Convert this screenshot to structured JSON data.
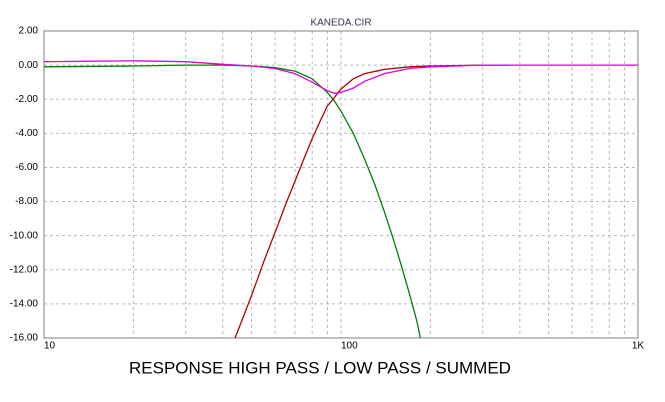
{
  "chart_data": {
    "type": "line",
    "title": "KANEDA.CIR",
    "caption": "RESPONSE  HIGH PASS / LOW PASS / SUMMED",
    "x_scale": "log",
    "xlim": [
      10,
      1000
    ],
    "xticks": [
      10,
      100,
      {
        "value": 1000,
        "label": "1K"
      }
    ],
    "xminorticks": [
      20,
      30,
      40,
      50,
      60,
      70,
      80,
      90,
      200,
      300,
      400,
      500,
      600,
      700,
      800,
      900
    ],
    "ylim": [
      -16,
      2
    ],
    "yticks": [
      {
        "value": 2,
        "label": "2.00"
      },
      {
        "value": 0,
        "label": "0.00"
      },
      {
        "value": -2,
        "label": "-2.00"
      },
      {
        "value": -4,
        "label": "-4.00"
      },
      {
        "value": -6,
        "label": "-6.00"
      },
      {
        "value": -8,
        "label": "-8.00"
      },
      {
        "value": -10,
        "label": "-10.00"
      },
      {
        "value": -12,
        "label": "-12.00"
      },
      {
        "value": -14,
        "label": "-14.00"
      },
      {
        "value": -16,
        "label": "-16.00"
      }
    ],
    "grid": true,
    "series": [
      {
        "color": "#008000",
        "x": [
          10,
          20,
          30,
          40,
          50,
          60,
          70,
          80,
          90,
          95,
          100,
          110,
          120,
          130,
          140,
          150,
          160,
          170,
          180,
          185
        ],
        "values": [
          -0.1,
          -0.05,
          0,
          0,
          -0.05,
          -0.15,
          -0.35,
          -0.8,
          -1.6,
          -2.1,
          -2.7,
          -4.0,
          -5.5,
          -7.0,
          -8.6,
          -10.2,
          -11.8,
          -13.4,
          -15.0,
          -16
        ]
      },
      {
        "color": "#b00000",
        "x": [
          44,
          50,
          55,
          60,
          65,
          70,
          75,
          80,
          85,
          90,
          95,
          100,
          110,
          120,
          140,
          170,
          200,
          300,
          370
        ],
        "values": [
          -16,
          -13.5,
          -11.5,
          -9.8,
          -8.2,
          -6.8,
          -5.5,
          -4.3,
          -3.3,
          -2.4,
          -1.9,
          -1.4,
          -0.8,
          -0.5,
          -0.25,
          -0.1,
          -0.05,
          0,
          0
        ]
      },
      {
        "color": "#e000e0",
        "x": [
          10,
          20,
          30,
          40,
          50,
          60,
          70,
          80,
          90,
          95,
          100,
          110,
          120,
          140,
          170,
          200,
          300,
          1000
        ],
        "values": [
          0.2,
          0.25,
          0.2,
          0.05,
          -0.05,
          -0.2,
          -0.5,
          -1.0,
          -1.5,
          -1.65,
          -1.6,
          -1.35,
          -0.95,
          -0.5,
          -0.2,
          -0.1,
          0,
          0
        ]
      }
    ]
  }
}
